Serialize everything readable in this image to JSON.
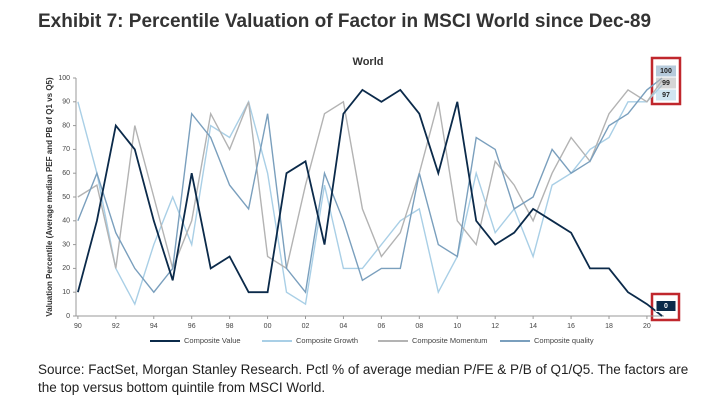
{
  "chart_data": {
    "type": "line",
    "title": "Exhibit 7:  Percentile Valuation of Factor in MSCI World since Dec-89",
    "subtitle": "World",
    "y_label": "Valuation Percentile (Average median PEF and PB of Q1 vs Q5)",
    "source": "Source: FactSet, Morgan Stanley Research. Pctl % of average median P/FE & P/B of Q1/Q5. The factors are the top versus bottom quintile from MSCI World.",
    "x": [
      1990,
      1991,
      1992,
      1993,
      1994,
      1995,
      1996,
      1997,
      1998,
      1999,
      2000,
      2001,
      2002,
      2003,
      2004,
      2005,
      2006,
      2007,
      2008,
      2009,
      2010,
      2011,
      2012,
      2013,
      2014,
      2015,
      2016,
      2017,
      2018,
      2019,
      2020,
      2020.8
    ],
    "xlim": [
      1989.9,
      2020.9
    ],
    "xticks": [
      {
        "value": 1990,
        "label": "90"
      },
      {
        "value": 1992,
        "label": "92"
      },
      {
        "value": 1994,
        "label": "94"
      },
      {
        "value": 1996,
        "label": "96"
      },
      {
        "value": 1998,
        "label": "98"
      },
      {
        "value": 2000,
        "label": "00"
      },
      {
        "value": 2002,
        "label": "02"
      },
      {
        "value": 2004,
        "label": "04"
      },
      {
        "value": 2006,
        "label": "06"
      },
      {
        "value": 2008,
        "label": "08"
      },
      {
        "value": 2010,
        "label": "10"
      },
      {
        "value": 2012,
        "label": "12"
      },
      {
        "value": 2014,
        "label": "14"
      },
      {
        "value": 2016,
        "label": "16"
      },
      {
        "value": 2018,
        "label": "18"
      },
      {
        "value": 2020,
        "label": "20"
      }
    ],
    "ylim": [
      0,
      100
    ],
    "yticks": [
      0,
      10,
      20,
      30,
      40,
      50,
      60,
      70,
      80,
      90,
      100
    ],
    "series": [
      {
        "name": "Composite Value",
        "color": "#0b2a4a",
        "end_label": "0",
        "values": [
          10,
          40,
          80,
          70,
          40,
          15,
          60,
          20,
          25,
          10,
          10,
          60,
          65,
          30,
          85,
          95,
          90,
          95,
          85,
          60,
          90,
          40,
          30,
          35,
          45,
          40,
          35,
          20,
          20,
          10,
          5,
          0
        ]
      },
      {
        "name": "Composite Growth",
        "color": "#a9cfe6",
        "end_label": "97",
        "values": [
          90,
          60,
          20,
          5,
          30,
          50,
          30,
          80,
          75,
          90,
          60,
          10,
          5,
          55,
          20,
          20,
          30,
          40,
          45,
          10,
          25,
          60,
          35,
          45,
          25,
          55,
          60,
          70,
          75,
          90,
          90,
          97
        ]
      },
      {
        "name": "Composite Momentum",
        "color": "#b3b3b3",
        "end_label": "99",
        "values": [
          50,
          55,
          20,
          80,
          50,
          20,
          40,
          85,
          70,
          90,
          25,
          20,
          55,
          85,
          90,
          45,
          25,
          35,
          60,
          90,
          40,
          30,
          65,
          55,
          40,
          60,
          75,
          65,
          85,
          95,
          90,
          99
        ]
      },
      {
        "name": "Composite quality",
        "color": "#7a9fbd",
        "end_label": "100",
        "values": [
          40,
          60,
          35,
          20,
          10,
          20,
          85,
          75,
          55,
          45,
          85,
          20,
          10,
          60,
          40,
          15,
          20,
          20,
          60,
          30,
          25,
          75,
          70,
          45,
          50,
          70,
          60,
          65,
          80,
          85,
          95,
          100
        ]
      }
    ]
  }
}
